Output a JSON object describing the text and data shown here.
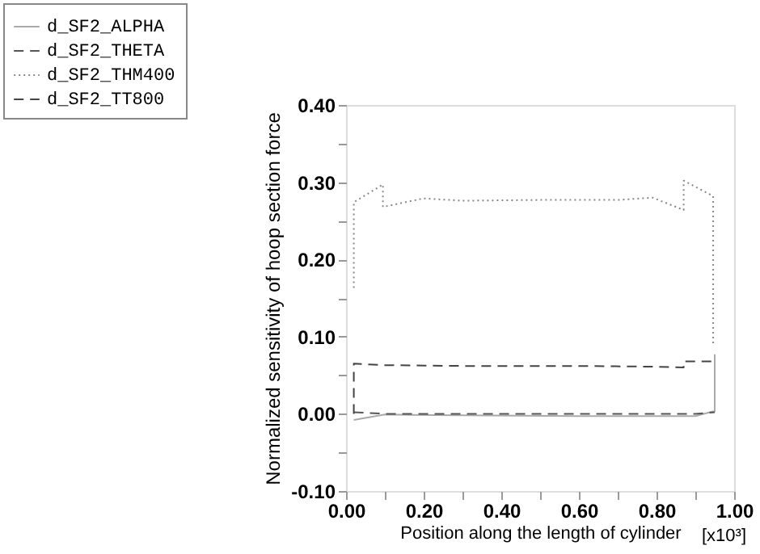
{
  "chart_data": {
    "type": "line",
    "xlabel": "Position along the length of cylinder",
    "ylabel": "Normalized sensitivity of hoop section force",
    "annotations": [
      "[x10³]"
    ],
    "xlim": [
      0,
      1
    ],
    "ylim": [
      -0.1,
      0.4
    ],
    "xticks": [
      {
        "value": 0,
        "label": "0.00"
      },
      {
        "value": 0.1,
        "label": null
      },
      {
        "value": 0.2,
        "label": "0.20"
      },
      {
        "value": 0.3,
        "label": null
      },
      {
        "value": 0.4,
        "label": "0.40"
      },
      {
        "value": 0.5,
        "label": null
      },
      {
        "value": 0.6,
        "label": "0.60"
      },
      {
        "value": 0.7,
        "label": null
      },
      {
        "value": 0.8,
        "label": "0.80"
      },
      {
        "value": 0.9,
        "label": null
      },
      {
        "value": 1,
        "label": "1.00"
      }
    ],
    "yticks": [
      {
        "value": -0.1,
        "label": "-0.10"
      },
      {
        "value": -0.05,
        "label": null
      },
      {
        "value": 0,
        "label": "0.00"
      },
      {
        "value": 0.05,
        "label": null
      },
      {
        "value": 0.1,
        "label": "0.10"
      },
      {
        "value": 0.15,
        "label": null
      },
      {
        "value": 0.2,
        "label": "0.20"
      },
      {
        "value": 0.25,
        "label": null
      },
      {
        "value": 0.3,
        "label": "0.30"
      },
      {
        "value": 0.35,
        "label": null
      },
      {
        "value": 0.4,
        "label": "0.40"
      }
    ],
    "grid": false,
    "legend": "top left",
    "marker": "none",
    "series": [
      {
        "name": "d_SF2_ALPHA",
        "color": "#aaaaaa",
        "line_style": "solid",
        "x": [
          0.02,
          0.1,
          0.3,
          0.6,
          0.9,
          0.945,
          0.95,
          0.95
        ],
        "values": [
          -0.008,
          -0.001,
          -0.002,
          -0.003,
          -0.003,
          0.003,
          0.003,
          0.077
        ]
      },
      {
        "name": "d_SF2_THETA",
        "color": "#555555",
        "line_style": "dashed",
        "x": [
          0.02,
          0.1,
          0.5,
          0.9,
          0.95
        ],
        "values": [
          0.002,
          0.0,
          0.0,
          0.0,
          0.002
        ]
      },
      {
        "name": "d_SF2_THM400",
        "color": "#888888",
        "line_style": "dotted",
        "x": [
          0.02,
          0.02,
          0.095,
          0.095,
          0.2,
          0.3,
          0.5,
          0.7,
          0.79,
          0.87,
          0.87,
          0.946,
          0.946
        ],
        "values": [
          0.163,
          0.274,
          0.297,
          0.268,
          0.279,
          0.276,
          0.277,
          0.277,
          0.28,
          0.264,
          0.302,
          0.282,
          0.09
        ]
      },
      {
        "name": "d_SF2_TT800",
        "color": "#444444",
        "line_style": "dashed",
        "x": [
          0.02,
          0.02,
          0.1,
          0.3,
          0.6,
          0.8,
          0.87,
          0.87,
          0.945
        ],
        "values": [
          0.0,
          0.065,
          0.063,
          0.062,
          0.062,
          0.061,
          0.06,
          0.068,
          0.068
        ]
      }
    ]
  }
}
